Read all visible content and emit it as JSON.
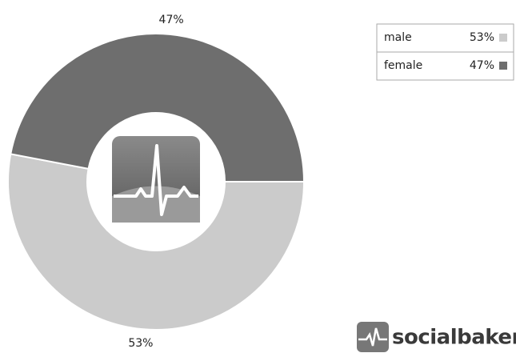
{
  "chart_data": {
    "type": "pie",
    "categories": [
      "male",
      "female"
    ],
    "values": [
      53,
      47
    ],
    "value_labels": [
      "53%",
      "47%"
    ],
    "colors": [
      "#cbcbcb",
      "#6e6e6e"
    ]
  },
  "brand": "socialbakers"
}
